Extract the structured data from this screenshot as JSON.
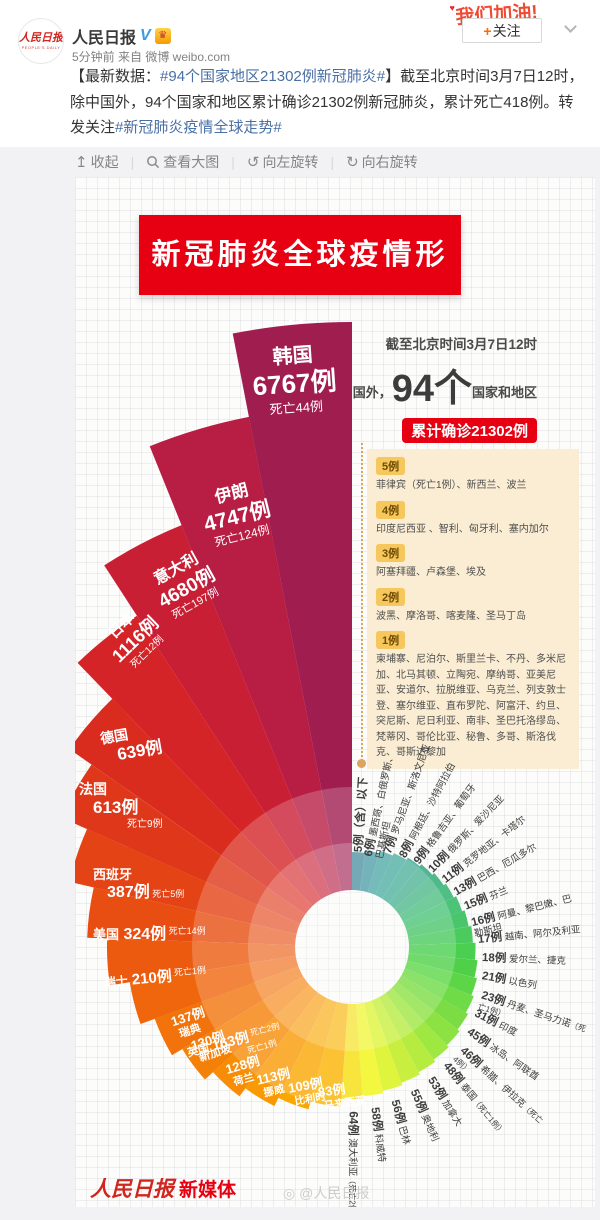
{
  "post": {
    "author": "人民日报",
    "verified_v": "V",
    "gold_badge": "♛",
    "time_source": "5分钟前 来自 微博 weibo.com",
    "follow_plus": "+",
    "follow_label": "关注",
    "sticker": "我们加油!",
    "avatar_line1": "人民日报",
    "avatar_line2": "PEOPLE'S DAILY",
    "text": {
      "prefix": "【最新数据：",
      "link1": "#94个国家地区21302例新冠肺炎#",
      "middle": "】截至北京时间3月7日12时，除中国外，94个国家和地区累计确诊21302例新冠肺炎，累计死亡418例。转发关注",
      "link2": "#新冠肺炎疫情全球走势#"
    }
  },
  "toolbar": {
    "collapse": "收起",
    "view_large": "查看大图",
    "rotate_left": "向左旋转",
    "rotate_right": "向右旋转",
    "collapse_icon": "↥",
    "rotate_left_icon": "↺",
    "rotate_right_icon": "↻"
  },
  "infographic": {
    "title": "新冠肺炎全球疫情形势",
    "asof": "截至北京时间3月7日12时",
    "scope_prefix": "除中国外，",
    "scope_number": "94个",
    "scope_suffix": "国家和地区",
    "pill_confirmed": "累计确诊21302例",
    "pill_deaths": "累计死亡418例",
    "groups": [
      {
        "badge": "5例",
        "text": "菲律宾（死亡1例）、新西兰、波兰"
      },
      {
        "badge": "4例",
        "text": "印度尼西亚 、智利、匈牙利、塞内加尔"
      },
      {
        "badge": "3例",
        "text": "阿塞拜疆、卢森堡、埃及"
      },
      {
        "badge": "2例",
        "text": "波黑、摩洛哥、喀麦隆、圣马丁岛"
      },
      {
        "badge": "1例",
        "text": "柬埔寨、尼泊尔、斯里兰卡、不丹、多米尼加、北马其顿、立陶宛、摩纳哥、亚美尼亚、安道尔、拉脱维亚、乌克兰、列支敦士登、塞尔维亚、直布罗陀、阿富汗、约旦、突尼斯、尼日利亚、南非、圣巴托洛缪岛、梵蒂冈、哥伦比亚、秘鲁、多哥、斯洛伐克、哥斯达黎加"
      }
    ],
    "brand": {
      "logo": "人民日报",
      "suffix": "新媒体"
    },
    "watermark": "@人民日报",
    "accent_red": "#e60012",
    "beige": "#faedd3"
  },
  "chart_data": {
    "type": "radial-fan",
    "title": "新冠肺炎全球疫情形势",
    "total_confirmed": 21302,
    "total_deaths": 418,
    "countries_count": 94,
    "major": [
      {
        "country": "韩国",
        "cases": 6767,
        "cases_label": "6767例",
        "deaths": 44,
        "deaths_label": "死亡44例"
      },
      {
        "country": "伊朗",
        "cases": 4747,
        "cases_label": "4747例",
        "deaths": 124,
        "deaths_label": "死亡124例"
      },
      {
        "country": "意大利",
        "cases": 4680,
        "cases_label": "4680例",
        "deaths": 197,
        "deaths_label": "死亡197例"
      },
      {
        "country": "日本",
        "cases": 1116,
        "cases_label": "1116例",
        "deaths": 12,
        "deaths_label": "死亡12例"
      },
      {
        "country": "德国",
        "cases": 639,
        "cases_label": "639例",
        "deaths": 0,
        "deaths_label": ""
      },
      {
        "country": "法国",
        "cases": 613,
        "cases_label": "613例",
        "deaths": 9,
        "deaths_label": "死亡9例"
      },
      {
        "country": "西班牙",
        "cases": 387,
        "cases_label": "387例",
        "deaths": 5,
        "deaths_label": "死亡5例"
      },
      {
        "country": "美国",
        "cases": 324,
        "cases_label": "324例",
        "deaths": 14,
        "deaths_label": "死亡14例"
      },
      {
        "country": "瑞士",
        "cases": 210,
        "cases_label": "210例",
        "deaths": 1,
        "deaths_label": "死亡1例"
      },
      {
        "country": "英国",
        "cases": 163,
        "cases_label": "163例",
        "deaths": 2,
        "deaths_label": "死亡2例"
      },
      {
        "country": "瑞典",
        "cases": 137,
        "cases_label": "137例",
        "deaths": 0,
        "deaths_label": ""
      },
      {
        "country": "新加坡",
        "cases": 130,
        "cases_label": "130例",
        "deaths": 0,
        "deaths_label": ""
      },
      {
        "country": "荷兰",
        "cases": 128,
        "cases_label": "128例",
        "deaths": 1,
        "deaths_label": "死亡1例"
      },
      {
        "country": "挪威",
        "cases": 113,
        "cases_label": "113例",
        "deaths": 0,
        "deaths_label": ""
      },
      {
        "country": "比利时",
        "cases": 109,
        "cases_label": "109例",
        "deaths": 0,
        "deaths_label": ""
      },
      {
        "country": "马来西亚",
        "cases": 83,
        "cases_label": "83例",
        "deaths": 0,
        "deaths_label": ""
      }
    ],
    "minor": [
      {
        "count": 5,
        "label": "5例（含）以下",
        "countries": "",
        "note": ""
      },
      {
        "count": 6,
        "label": "6例",
        "countries": "墨西哥、白俄罗斯、巴基斯坦",
        "note": ""
      },
      {
        "count": 7,
        "label": "7例",
        "countries": "罗马尼亚、斯洛文尼亚",
        "note": ""
      },
      {
        "count": 8,
        "label": "8例",
        "countries": "阿根廷、沙特阿拉伯",
        "note": ""
      },
      {
        "count": 9,
        "label": "9例",
        "countries": "格鲁吉亚、葡萄牙",
        "note": ""
      },
      {
        "count": 10,
        "label": "10例",
        "countries": "俄罗斯、爱沙尼亚",
        "note": ""
      },
      {
        "count": 11,
        "label": "11例",
        "countries": "克罗地亚、卡塔尔",
        "note": ""
      },
      {
        "count": 13,
        "label": "13例",
        "countries": "巴西、厄瓜多尔",
        "note": ""
      },
      {
        "count": 15,
        "label": "15例",
        "countries": "芬兰",
        "note": ""
      },
      {
        "count": 16,
        "label": "16例",
        "countries": "阿曼、黎巴嫩、巴勒斯坦",
        "note": ""
      },
      {
        "count": 17,
        "label": "17例",
        "countries": "越南、阿尔及利亚",
        "note": ""
      },
      {
        "count": 18,
        "label": "18例",
        "countries": "爱尔兰、捷克",
        "note": ""
      },
      {
        "count": 21,
        "label": "21例",
        "countries": "以色列",
        "note": ""
      },
      {
        "count": 23,
        "label": "23例",
        "countries": "丹麦、圣马力诺",
        "note": "（死亡1例）"
      },
      {
        "count": 31,
        "label": "31例",
        "countries": "印度",
        "note": ""
      },
      {
        "count": 45,
        "label": "45例",
        "countries": "冰岛、阿联酋",
        "note": ""
      },
      {
        "count": 46,
        "label": "46例",
        "countries": "希腊、伊拉克",
        "note": "（死亡4例）"
      },
      {
        "count": 48,
        "label": "48例",
        "countries": "泰国",
        "note": "（死亡1例）"
      },
      {
        "count": 53,
        "label": "53例",
        "countries": "加拿大",
        "note": ""
      },
      {
        "count": 55,
        "label": "55例",
        "countries": "奥地利",
        "note": ""
      },
      {
        "count": 56,
        "label": "56例",
        "countries": "巴林",
        "note": ""
      },
      {
        "count": 58,
        "label": "58例",
        "countries": "科威特",
        "note": ""
      },
      {
        "count": 64,
        "label": "64例",
        "countries": "澳大利亚",
        "note": "（死亡2例）"
      }
    ]
  }
}
